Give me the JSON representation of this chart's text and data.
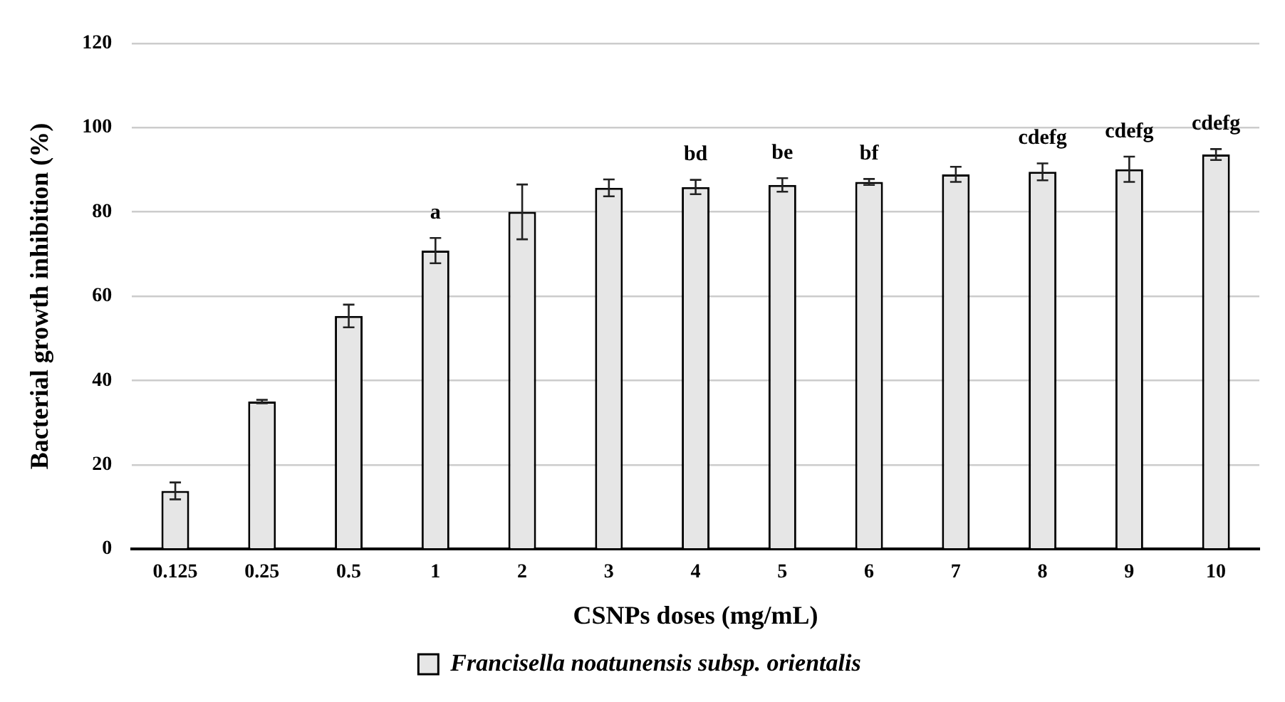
{
  "chart_data": {
    "type": "bar",
    "xlabel": "CSNPs doses (mg/mL)",
    "ylabel": "Bacterial growth inhibition (%)",
    "categories": [
      "0.125",
      "0.25",
      "0.5",
      "1",
      "2",
      "3",
      "4",
      "5",
      "6",
      "7",
      "8",
      "9",
      "10"
    ],
    "series": [
      {
        "name": "Francisella noatunensis subsp. orientalis",
        "color": "#e6e6e6",
        "values": [
          13.8,
          35,
          55.3,
          70.8,
          80,
          85.7,
          85.9,
          86.4,
          87.1,
          88.9,
          89.5,
          90.1,
          93.6
        ],
        "errors": [
          2,
          0.4,
          2.7,
          3,
          6.5,
          2,
          1.7,
          1.6,
          0.7,
          1.8,
          2,
          3,
          1.3
        ]
      }
    ],
    "ylim": [
      0,
      120
    ],
    "yticks": [
      0,
      20,
      40,
      60,
      80,
      100,
      120
    ],
    "grid": "y",
    "legend": "bottom",
    "annotations": [
      {
        "text": "a",
        "x": "1",
        "y": 70.8
      },
      {
        "text": "bd",
        "x": "4",
        "y": 85.9
      },
      {
        "text": "be",
        "x": "5",
        "y": 86.4
      },
      {
        "text": "bf",
        "x": "6",
        "y": 87.1
      },
      {
        "text": "cdefg",
        "x": "8",
        "y": 89.5
      },
      {
        "text": "cdefg",
        "x": "9",
        "y": 90.1
      },
      {
        "text": "cdefg",
        "x": "10",
        "y": 93.6
      }
    ]
  }
}
